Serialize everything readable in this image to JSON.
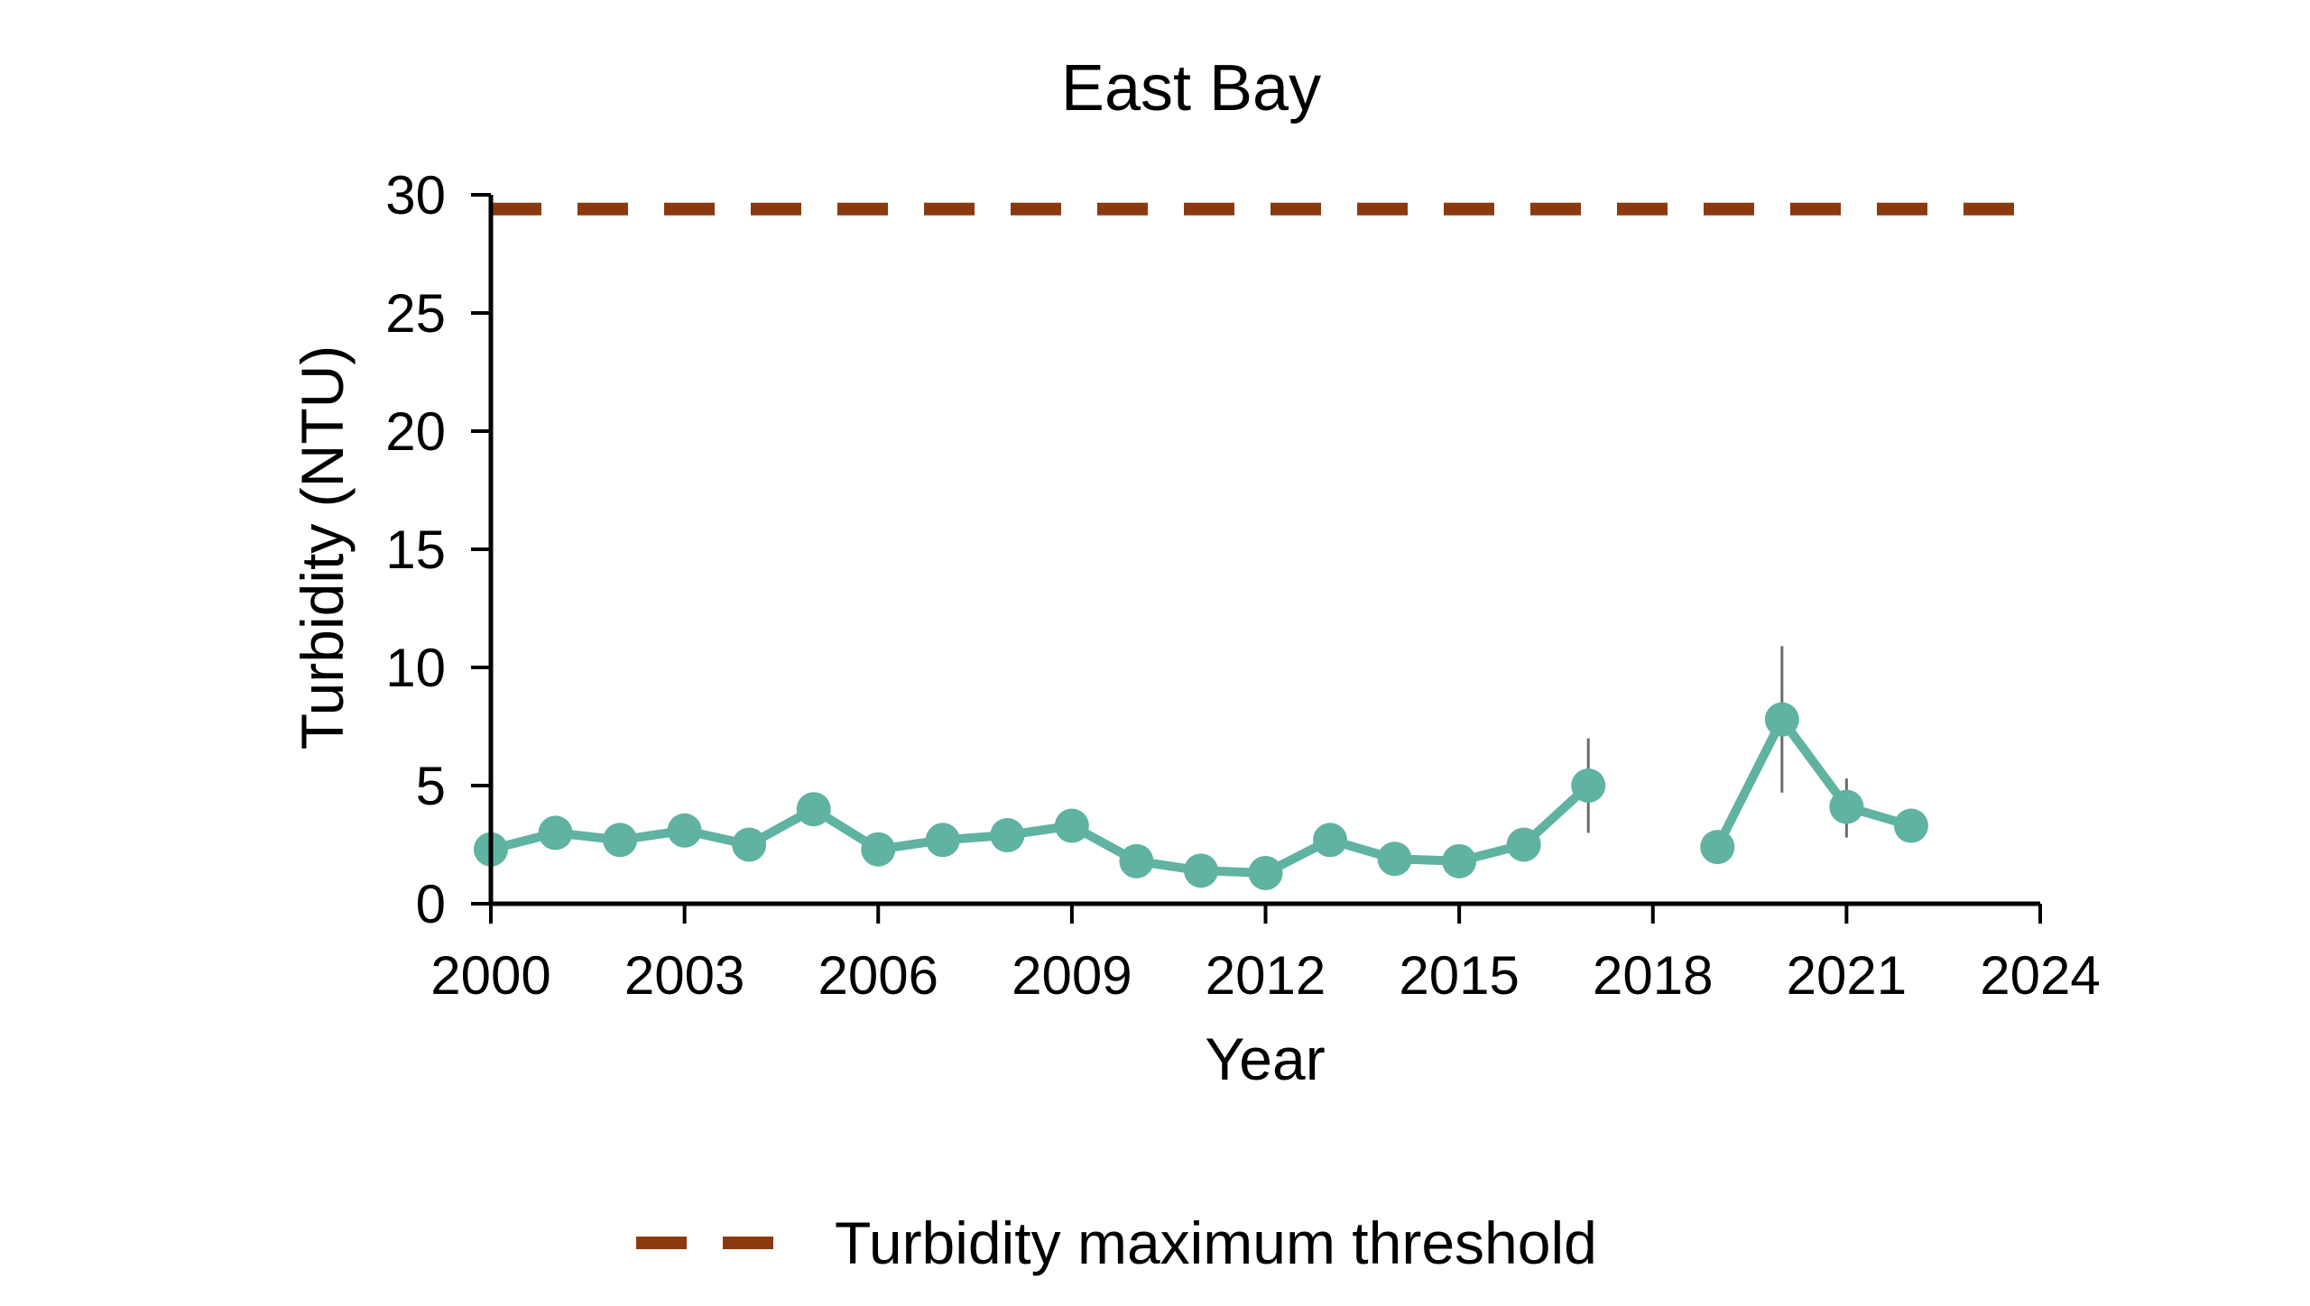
{
  "chart_data": {
    "type": "line",
    "title": "East Bay",
    "xlabel": "Year",
    "ylabel": "Turbidity (NTU)",
    "xlim": [
      2000,
      2024
    ],
    "ylim": [
      0,
      30
    ],
    "xticks": [
      2000,
      2003,
      2006,
      2009,
      2012,
      2015,
      2018,
      2021,
      2024
    ],
    "yticks": [
      0,
      5,
      10,
      15,
      20,
      25,
      30
    ],
    "grid": false,
    "legend_placement": "bottom",
    "series": [
      {
        "color": "#5fb3a0",
        "points": [
          {
            "x": 2000,
            "y": 2.3
          },
          {
            "x": 2001,
            "y": 3.0
          },
          {
            "x": 2002,
            "y": 2.7
          },
          {
            "x": 2003,
            "y": 3.1
          },
          {
            "x": 2004,
            "y": 2.5
          },
          {
            "x": 2005,
            "y": 4.0
          },
          {
            "x": 2006,
            "y": 2.3
          },
          {
            "x": 2007,
            "y": 2.7
          },
          {
            "x": 2008,
            "y": 2.9
          },
          {
            "x": 2009,
            "y": 3.3
          },
          {
            "x": 2010,
            "y": 1.8
          },
          {
            "x": 2011,
            "y": 1.4
          },
          {
            "x": 2012,
            "y": 1.3
          },
          {
            "x": 2013,
            "y": 2.7
          },
          {
            "x": 2014,
            "y": 1.9
          },
          {
            "x": 2015,
            "y": 1.8
          },
          {
            "x": 2016,
            "y": 2.5
          },
          {
            "x": 2017,
            "y": 5.0,
            "err_low": 3.0,
            "err_high": 7.0
          },
          {
            "x": 2019,
            "y": 2.4
          },
          {
            "x": 2020,
            "y": 7.8,
            "err_low": 4.7,
            "err_high": 10.9
          },
          {
            "x": 2021,
            "y": 4.1,
            "err_low": 2.8,
            "err_high": 5.3
          },
          {
            "x": 2022,
            "y": 3.3
          }
        ],
        "segments": [
          [
            2000,
            2017
          ],
          [
            2019,
            2022
          ]
        ]
      },
      {
        "name": "Turbidity maximum threshold",
        "color": "#8b3a0f",
        "style": "dashed",
        "constant_y": 29.4
      }
    ]
  }
}
